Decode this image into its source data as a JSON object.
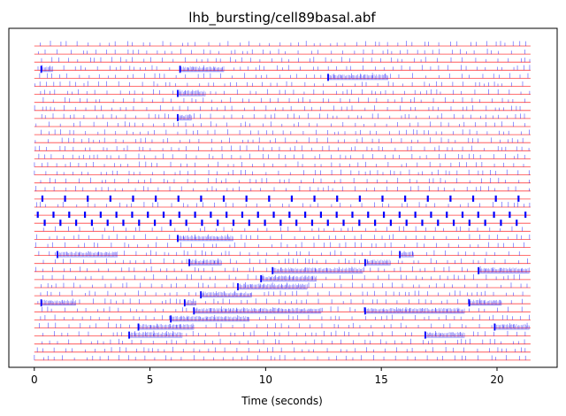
{
  "chart_data": {
    "type": "raster",
    "title": "lhb_bursting/cell89basal.abf",
    "xlabel": "Time (seconds)",
    "ylabel": "",
    "xlim": [
      -1.1,
      22.6
    ],
    "x_ticks": [
      0,
      5,
      10,
      15,
      20
    ],
    "x_tick_labels": [
      "0",
      "5",
      "10",
      "15",
      "20"
    ],
    "y_ticks_visible": false,
    "sweep_duration": 21.45,
    "sweep_count": 40,
    "baseline_color": "#ff0000",
    "trace_color": "#0000ff",
    "grid": false,
    "bursts": [
      {
        "sweep": 3,
        "start": 0.3,
        "end": 0.8
      },
      {
        "sweep": 3,
        "start": 6.3,
        "end": 8.2
      },
      {
        "sweep": 4,
        "start": 12.7,
        "end": 15.3
      },
      {
        "sweep": 6,
        "start": 6.2,
        "end": 7.4
      },
      {
        "sweep": 9,
        "start": 6.2,
        "end": 6.8
      },
      {
        "sweep": 24,
        "start": 6.2,
        "end": 8.6
      },
      {
        "sweep": 26,
        "start": 1.0,
        "end": 3.6
      },
      {
        "sweep": 26,
        "start": 15.8,
        "end": 16.4
      },
      {
        "sweep": 27,
        "start": 6.7,
        "end": 8.1
      },
      {
        "sweep": 27,
        "start": 14.3,
        "end": 15.4
      },
      {
        "sweep": 28,
        "start": 10.3,
        "end": 14.2
      },
      {
        "sweep": 28,
        "start": 19.2,
        "end": 21.4
      },
      {
        "sweep": 29,
        "start": 9.8,
        "end": 12.2
      },
      {
        "sweep": 30,
        "start": 8.8,
        "end": 11.8
      },
      {
        "sweep": 31,
        "start": 7.2,
        "end": 9.4
      },
      {
        "sweep": 32,
        "start": 0.3,
        "end": 1.8
      },
      {
        "sweep": 32,
        "start": 6.5,
        "end": 7.0
      },
      {
        "sweep": 32,
        "start": 18.8,
        "end": 20.2
      },
      {
        "sweep": 33,
        "start": 6.9,
        "end": 12.4
      },
      {
        "sweep": 33,
        "start": 14.3,
        "end": 18.6
      },
      {
        "sweep": 34,
        "start": 5.9,
        "end": 9.3
      },
      {
        "sweep": 35,
        "start": 4.5,
        "end": 6.9
      },
      {
        "sweep": 35,
        "start": 19.9,
        "end": 21.4
      },
      {
        "sweep": 36,
        "start": 4.1,
        "end": 6.4
      },
      {
        "sweep": 36,
        "start": 16.9,
        "end": 18.6
      }
    ],
    "tonic_sweeps": [
      {
        "sweep": 19,
        "period": 0.98,
        "offset": 0.35
      },
      {
        "sweep": 21,
        "period": 0.68,
        "offset": 0.15
      },
      {
        "sweep": 22,
        "period": 0.68,
        "offset": 0.45
      }
    ]
  }
}
